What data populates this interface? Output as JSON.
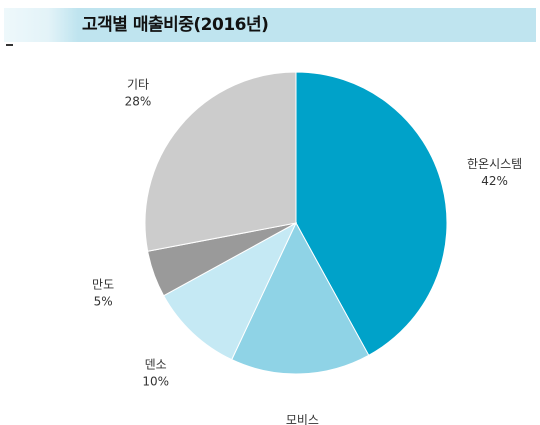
{
  "header": {
    "title": "고객별 매출비중(2016년)"
  },
  "chart_data": {
    "type": "pie",
    "title": "고객별 매출비중(2016년)",
    "slices": [
      {
        "name": "한온시스템",
        "value": 42,
        "label": "42%",
        "color": "#00a2c9"
      },
      {
        "name": "모비스",
        "value": 15,
        "label": "15%",
        "color": "#8fd3e6"
      },
      {
        "name": "덴소",
        "value": 10,
        "label": "10%",
        "color": "#c5e9f4"
      },
      {
        "name": "만도",
        "value": 5,
        "label": "5%",
        "color": "#9a9a9a"
      },
      {
        "name": "기타",
        "value": 28,
        "label": "28%",
        "color": "#cccccc"
      }
    ],
    "start_angle_deg": 0,
    "direction": "clockwise",
    "legend": "none"
  }
}
